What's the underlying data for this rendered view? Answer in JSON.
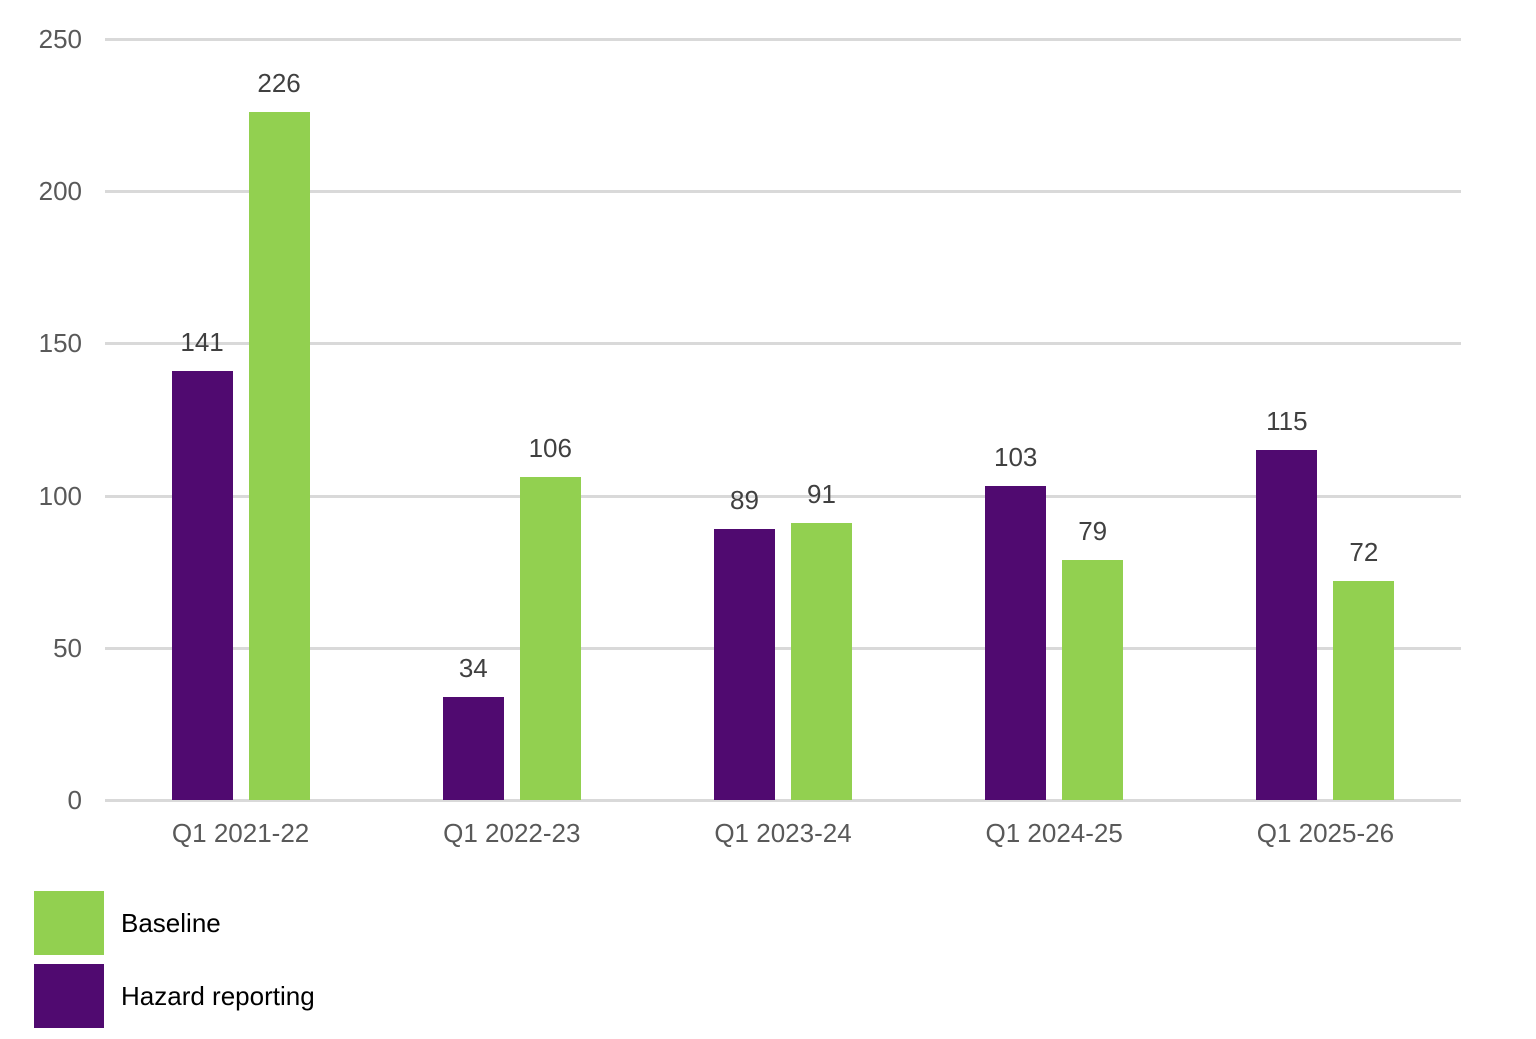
{
  "chart_data": {
    "type": "bar",
    "title": "",
    "xlabel": "",
    "ylabel": "",
    "ylim": [
      0,
      250
    ],
    "yticks": [
      0,
      50,
      100,
      150,
      200,
      250
    ],
    "grid": true,
    "legend_position": "bottom-left",
    "categories": [
      "Q1 2021-22",
      "Q1 2022-23",
      "Q1 2023-24",
      "Q1 2024-25",
      "Q1 2025-26"
    ],
    "series": [
      {
        "name": "Hazard reporting",
        "color": "#500a70",
        "values": [
          141,
          34,
          89,
          103,
          115
        ]
      },
      {
        "name": "Baseline",
        "color": "#92d050",
        "values": [
          226,
          106,
          91,
          79,
          72
        ]
      }
    ]
  },
  "yaxis": {
    "ticks": [
      "0",
      "50",
      "100",
      "150",
      "200",
      "250"
    ]
  },
  "legend": {
    "items": [
      {
        "label": "Baseline",
        "color": "#92d050"
      },
      {
        "label": "Hazard reporting",
        "color": "#500a70"
      }
    ]
  }
}
